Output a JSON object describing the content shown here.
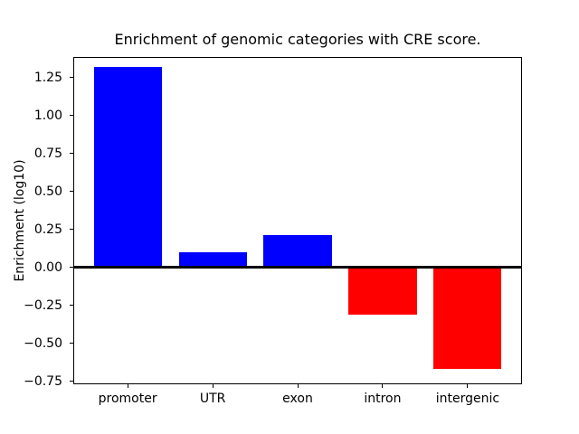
{
  "chart_data": {
    "type": "bar",
    "title": "Enrichment of genomic categories with CRE score.",
    "xlabel": "",
    "ylabel": "Enrichment (log10)",
    "categories": [
      "promoter",
      "UTR",
      "exon",
      "intron",
      "intergenic"
    ],
    "values": [
      1.32,
      0.1,
      0.21,
      -0.31,
      -0.67
    ],
    "bar_colors": [
      "#0000ff",
      "#0000ff",
      "#0000ff",
      "#ff0000",
      "#ff0000"
    ],
    "positive_color": "#0000ff",
    "negative_color": "#ff0000",
    "bar_width": 0.8,
    "xlim": [
      -0.64,
      4.64
    ],
    "ylim": [
      -0.77,
      1.385
    ],
    "y_ticks": [
      1.25,
      1.0,
      0.75,
      0.5,
      0.25,
      0.0,
      -0.25,
      -0.5,
      -0.75
    ],
    "y_tick_labels": [
      "1.25",
      "1.00",
      "0.75",
      "0.50",
      "0.25",
      "0.00",
      "−0.25",
      "−0.50",
      "−0.75"
    ],
    "zero_line": true,
    "zero_line_color": "#000000",
    "grid": false,
    "legend": null,
    "frame_color": "#000000",
    "background_color": "#ffffff"
  }
}
